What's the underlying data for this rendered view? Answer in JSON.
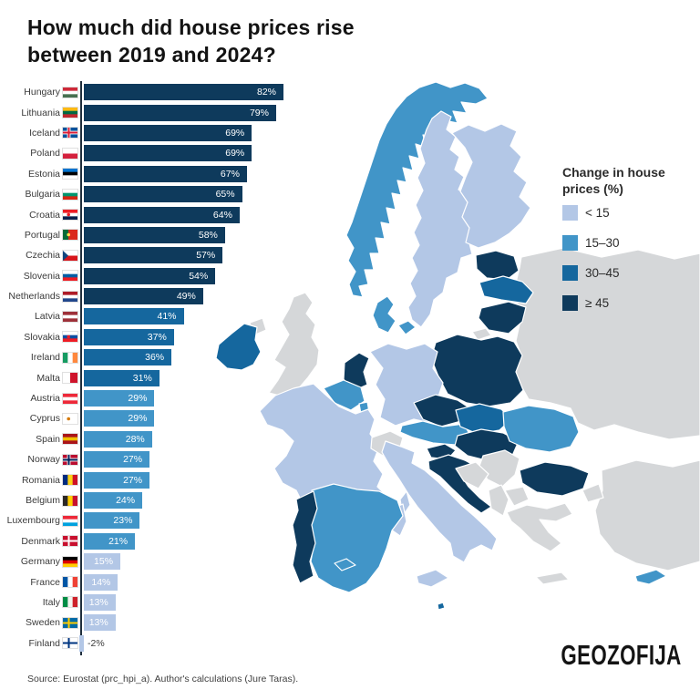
{
  "title": {
    "line1": "How much did house prices rise",
    "line2": "between 2019 and 2024?"
  },
  "source": {
    "text": "Source: Eurostat (prc_hpi_a). Author's calculations (Jure Taras)."
  },
  "logo": {
    "text": "GEOZOFIJA"
  },
  "legend": {
    "title_line1": "Change in house",
    "title_line2": "prices (%)",
    "items": [
      {
        "label": "< 15",
        "bucket": "lt15"
      },
      {
        "label": "15–30",
        "bucket": "b15_30"
      },
      {
        "label": "30–45",
        "bucket": "b30_45"
      },
      {
        "label": "≥ 45",
        "bucket": "ge45"
      }
    ],
    "colors": {
      "lt15": "#b3c7e6",
      "b15_30": "#4195c8",
      "b30_45": "#15679e",
      "ge45": "#0e3a5c",
      "none": "#d5d7d9"
    }
  },
  "chart_data": {
    "type": "bar",
    "orientation": "horizontal",
    "title": "How much did house prices rise between 2019 and 2024?",
    "unit": "%",
    "xlim": [
      -5,
      85
    ],
    "grid": false,
    "legend_position": "right",
    "categories": [
      "Hungary",
      "Lithuania",
      "Iceland",
      "Poland",
      "Estonia",
      "Bulgaria",
      "Croatia",
      "Portugal",
      "Czechia",
      "Slovenia",
      "Netherlands",
      "Latvia",
      "Slovakia",
      "Ireland",
      "Malta",
      "Austria",
      "Cyprus",
      "Spain",
      "Norway",
      "Romania",
      "Belgium",
      "Luxembourg",
      "Denmark",
      "Germany",
      "France",
      "Italy",
      "Sweden",
      "Finland"
    ],
    "values": [
      82,
      79,
      69,
      69,
      67,
      65,
      64,
      58,
      57,
      54,
      49,
      41,
      37,
      36,
      31,
      29,
      29,
      28,
      27,
      27,
      24,
      23,
      21,
      15,
      14,
      13,
      13,
      -2
    ],
    "countries": [
      {
        "name": "Hungary",
        "value": 82,
        "label": "82%",
        "bucket": "ge45",
        "flag": {
          "k": "h",
          "c": [
            "#ce2939",
            "#ffffff",
            "#477050"
          ]
        }
      },
      {
        "name": "Lithuania",
        "value": 79,
        "label": "79%",
        "bucket": "ge45",
        "flag": {
          "k": "h",
          "c": [
            "#fdb913",
            "#006a44",
            "#c1272d"
          ]
        }
      },
      {
        "name": "Iceland",
        "value": 69,
        "label": "69%",
        "bucket": "ge45",
        "flag": {
          "k": "n",
          "bg": "#02529c",
          "outer": "#ffffff",
          "inner": "#dc1e35"
        }
      },
      {
        "name": "Poland",
        "value": 69,
        "label": "69%",
        "bucket": "ge45",
        "flag": {
          "k": "h",
          "c": [
            "#ffffff",
            "#d4213d"
          ]
        }
      },
      {
        "name": "Estonia",
        "value": 67,
        "label": "67%",
        "bucket": "ge45",
        "flag": {
          "k": "h",
          "c": [
            "#0072ce",
            "#000000",
            "#ffffff"
          ]
        }
      },
      {
        "name": "Bulgaria",
        "value": 65,
        "label": "65%",
        "bucket": "ge45",
        "flag": {
          "k": "h",
          "c": [
            "#ffffff",
            "#00966e",
            "#d62612"
          ]
        }
      },
      {
        "name": "Croatia",
        "value": 64,
        "label": "64%",
        "bucket": "ge45",
        "flag": {
          "k": "h",
          "c": [
            "#ed1c24",
            "#ffffff",
            "#0b204c"
          ],
          "e": "#ed1c24"
        }
      },
      {
        "name": "Portugal",
        "value": 58,
        "label": "58%",
        "bucket": "ge45",
        "flag": {
          "k": "v",
          "c": [
            "#046a38",
            "#da291c"
          ],
          "split": [
            0.38,
            0.62
          ],
          "e": "#ffe34d"
        }
      },
      {
        "name": "Czechia",
        "value": 57,
        "label": "57%",
        "bucket": "ge45",
        "flag": {
          "k": "h",
          "c": [
            "#ffffff",
            "#d7141a"
          ],
          "tri": "#11457e"
        }
      },
      {
        "name": "Slovenia",
        "value": 54,
        "label": "54%",
        "bucket": "ge45",
        "flag": {
          "k": "h",
          "c": [
            "#ffffff",
            "#005da4",
            "#ed1c24"
          ],
          "e": "#005da4"
        }
      },
      {
        "name": "Netherlands",
        "value": 49,
        "label": "49%",
        "bucket": "ge45",
        "flag": {
          "k": "h",
          "c": [
            "#ae1c28",
            "#ffffff",
            "#21468b"
          ]
        }
      },
      {
        "name": "Latvia",
        "value": 41,
        "label": "41%",
        "bucket": "b30_45",
        "flag": {
          "k": "h",
          "c": [
            "#9e3039",
            "#ffffff",
            "#9e3039"
          ]
        }
      },
      {
        "name": "Slovakia",
        "value": 37,
        "label": "37%",
        "bucket": "b30_45",
        "flag": {
          "k": "h",
          "c": [
            "#ffffff",
            "#0b4ea2",
            "#ee1c25"
          ],
          "e": "#ee1c25"
        }
      },
      {
        "name": "Ireland",
        "value": 36,
        "label": "36%",
        "bucket": "b30_45",
        "flag": {
          "k": "v",
          "c": [
            "#169b62",
            "#ffffff",
            "#ff883e"
          ]
        }
      },
      {
        "name": "Malta",
        "value": 31,
        "label": "31%",
        "bucket": "b30_45",
        "flag": {
          "k": "v",
          "c": [
            "#ffffff",
            "#cf142b"
          ]
        }
      },
      {
        "name": "Austria",
        "value": 29,
        "label": "29%",
        "bucket": "b15_30",
        "flag": {
          "k": "h",
          "c": [
            "#ed2939",
            "#ffffff",
            "#ed2939"
          ]
        }
      },
      {
        "name": "Cyprus",
        "value": 29,
        "label": "29%",
        "bucket": "b15_30",
        "flag": {
          "k": "h",
          "c": [
            "#ffffff"
          ],
          "e": "#d57800"
        }
      },
      {
        "name": "Spain",
        "value": 28,
        "label": "28%",
        "bucket": "b15_30",
        "flag": {
          "k": "h",
          "c": [
            "#aa151b",
            "#f1bf00",
            "#aa151b"
          ]
        }
      },
      {
        "name": "Norway",
        "value": 27,
        "label": "27%",
        "bucket": "b15_30",
        "flag": {
          "k": "n",
          "bg": "#ba0c2f",
          "outer": "#ffffff",
          "inner": "#00205b"
        }
      },
      {
        "name": "Romania",
        "value": 27,
        "label": "27%",
        "bucket": "b15_30",
        "flag": {
          "k": "v",
          "c": [
            "#002b7f",
            "#fcd116",
            "#ce1126"
          ]
        }
      },
      {
        "name": "Belgium",
        "value": 24,
        "label": "24%",
        "bucket": "b15_30",
        "flag": {
          "k": "v",
          "c": [
            "#2d2926",
            "#ffcd00",
            "#c8102e"
          ]
        }
      },
      {
        "name": "Luxembourg",
        "value": 23,
        "label": "23%",
        "bucket": "b15_30",
        "flag": {
          "k": "h",
          "c": [
            "#ed2939",
            "#ffffff",
            "#00a1de"
          ]
        }
      },
      {
        "name": "Denmark",
        "value": 21,
        "label": "21%",
        "bucket": "b15_30",
        "flag": {
          "k": "n",
          "bg": "#c8102e",
          "inner": "#ffffff"
        }
      },
      {
        "name": "Germany",
        "value": 15,
        "label": "15%",
        "bucket": "lt15",
        "flag": {
          "k": "h",
          "c": [
            "#000000",
            "#dd0000",
            "#ffce00"
          ]
        }
      },
      {
        "name": "France",
        "value": 14,
        "label": "14%",
        "bucket": "lt15",
        "flag": {
          "k": "v",
          "c": [
            "#0055a4",
            "#ffffff",
            "#ef4135"
          ]
        }
      },
      {
        "name": "Italy",
        "value": 13,
        "label": "13%",
        "bucket": "lt15",
        "flag": {
          "k": "v",
          "c": [
            "#008c45",
            "#f4f5f0",
            "#cd212a"
          ]
        }
      },
      {
        "name": "Sweden",
        "value": 13,
        "label": "13%",
        "bucket": "lt15",
        "flag": {
          "k": "n",
          "bg": "#006aa7",
          "inner": "#fecc02"
        }
      },
      {
        "name": "Finland",
        "value": -2,
        "label": "-2%",
        "bucket": "lt15",
        "flag": {
          "k": "n",
          "bg": "#ffffff",
          "inner": "#003580"
        }
      }
    ]
  },
  "map": {
    "regions": [
      {
        "name": "russia-belarus-ukraine",
        "bucket": "none"
      },
      {
        "name": "kaliningrad",
        "bucket": "none"
      },
      {
        "name": "uk",
        "bucket": "none"
      },
      {
        "name": "northern-ireland",
        "bucket": "none"
      },
      {
        "name": "ireland",
        "bucket": "b30_45"
      },
      {
        "name": "norway",
        "bucket": "b15_30"
      },
      {
        "name": "sweden",
        "bucket": "lt15"
      },
      {
        "name": "finland",
        "bucket": "lt15"
      },
      {
        "name": "estonia",
        "bucket": "ge45"
      },
      {
        "name": "latvia",
        "bucket": "b30_45"
      },
      {
        "name": "lithuania",
        "bucket": "ge45"
      },
      {
        "name": "poland",
        "bucket": "ge45"
      },
      {
        "name": "germany",
        "bucket": "lt15"
      },
      {
        "name": "denmark",
        "bucket": "b15_30"
      },
      {
        "name": "denmark-isles",
        "bucket": "b15_30"
      },
      {
        "name": "netherlands",
        "bucket": "ge45"
      },
      {
        "name": "belgium",
        "bucket": "b15_30"
      },
      {
        "name": "luxembourg",
        "bucket": "b15_30"
      },
      {
        "name": "france",
        "bucket": "lt15"
      },
      {
        "name": "corsica",
        "bucket": "lt15"
      },
      {
        "name": "switzerland",
        "bucket": "none"
      },
      {
        "name": "czechia",
        "bucket": "ge45"
      },
      {
        "name": "austria",
        "bucket": "b15_30"
      },
      {
        "name": "slovakia",
        "bucket": "b30_45"
      },
      {
        "name": "hungary",
        "bucket": "ge45"
      },
      {
        "name": "slovenia",
        "bucket": "ge45"
      },
      {
        "name": "croatia",
        "bucket": "ge45"
      },
      {
        "name": "italy",
        "bucket": "lt15"
      },
      {
        "name": "sicily",
        "bucket": "lt15"
      },
      {
        "name": "sardinia",
        "bucket": "lt15"
      },
      {
        "name": "malta",
        "bucket": "b30_45"
      },
      {
        "name": "romania",
        "bucket": "b15_30"
      },
      {
        "name": "bulgaria",
        "bucket": "ge45"
      },
      {
        "name": "serbia",
        "bucket": "none"
      },
      {
        "name": "bosnia",
        "bucket": "none"
      },
      {
        "name": "albania",
        "bucket": "none"
      },
      {
        "name": "north-macedonia",
        "bucket": "none"
      },
      {
        "name": "greece",
        "bucket": "none"
      },
      {
        "name": "crete",
        "bucket": "none"
      },
      {
        "name": "spain",
        "bucket": "b15_30"
      },
      {
        "name": "portugal",
        "bucket": "ge45"
      },
      {
        "name": "baleares",
        "bucket": "b15_30"
      },
      {
        "name": "turkey",
        "bucket": "none"
      },
      {
        "name": "turkey-eu",
        "bucket": "none"
      },
      {
        "name": "cyprus",
        "bucket": "b15_30"
      }
    ]
  }
}
